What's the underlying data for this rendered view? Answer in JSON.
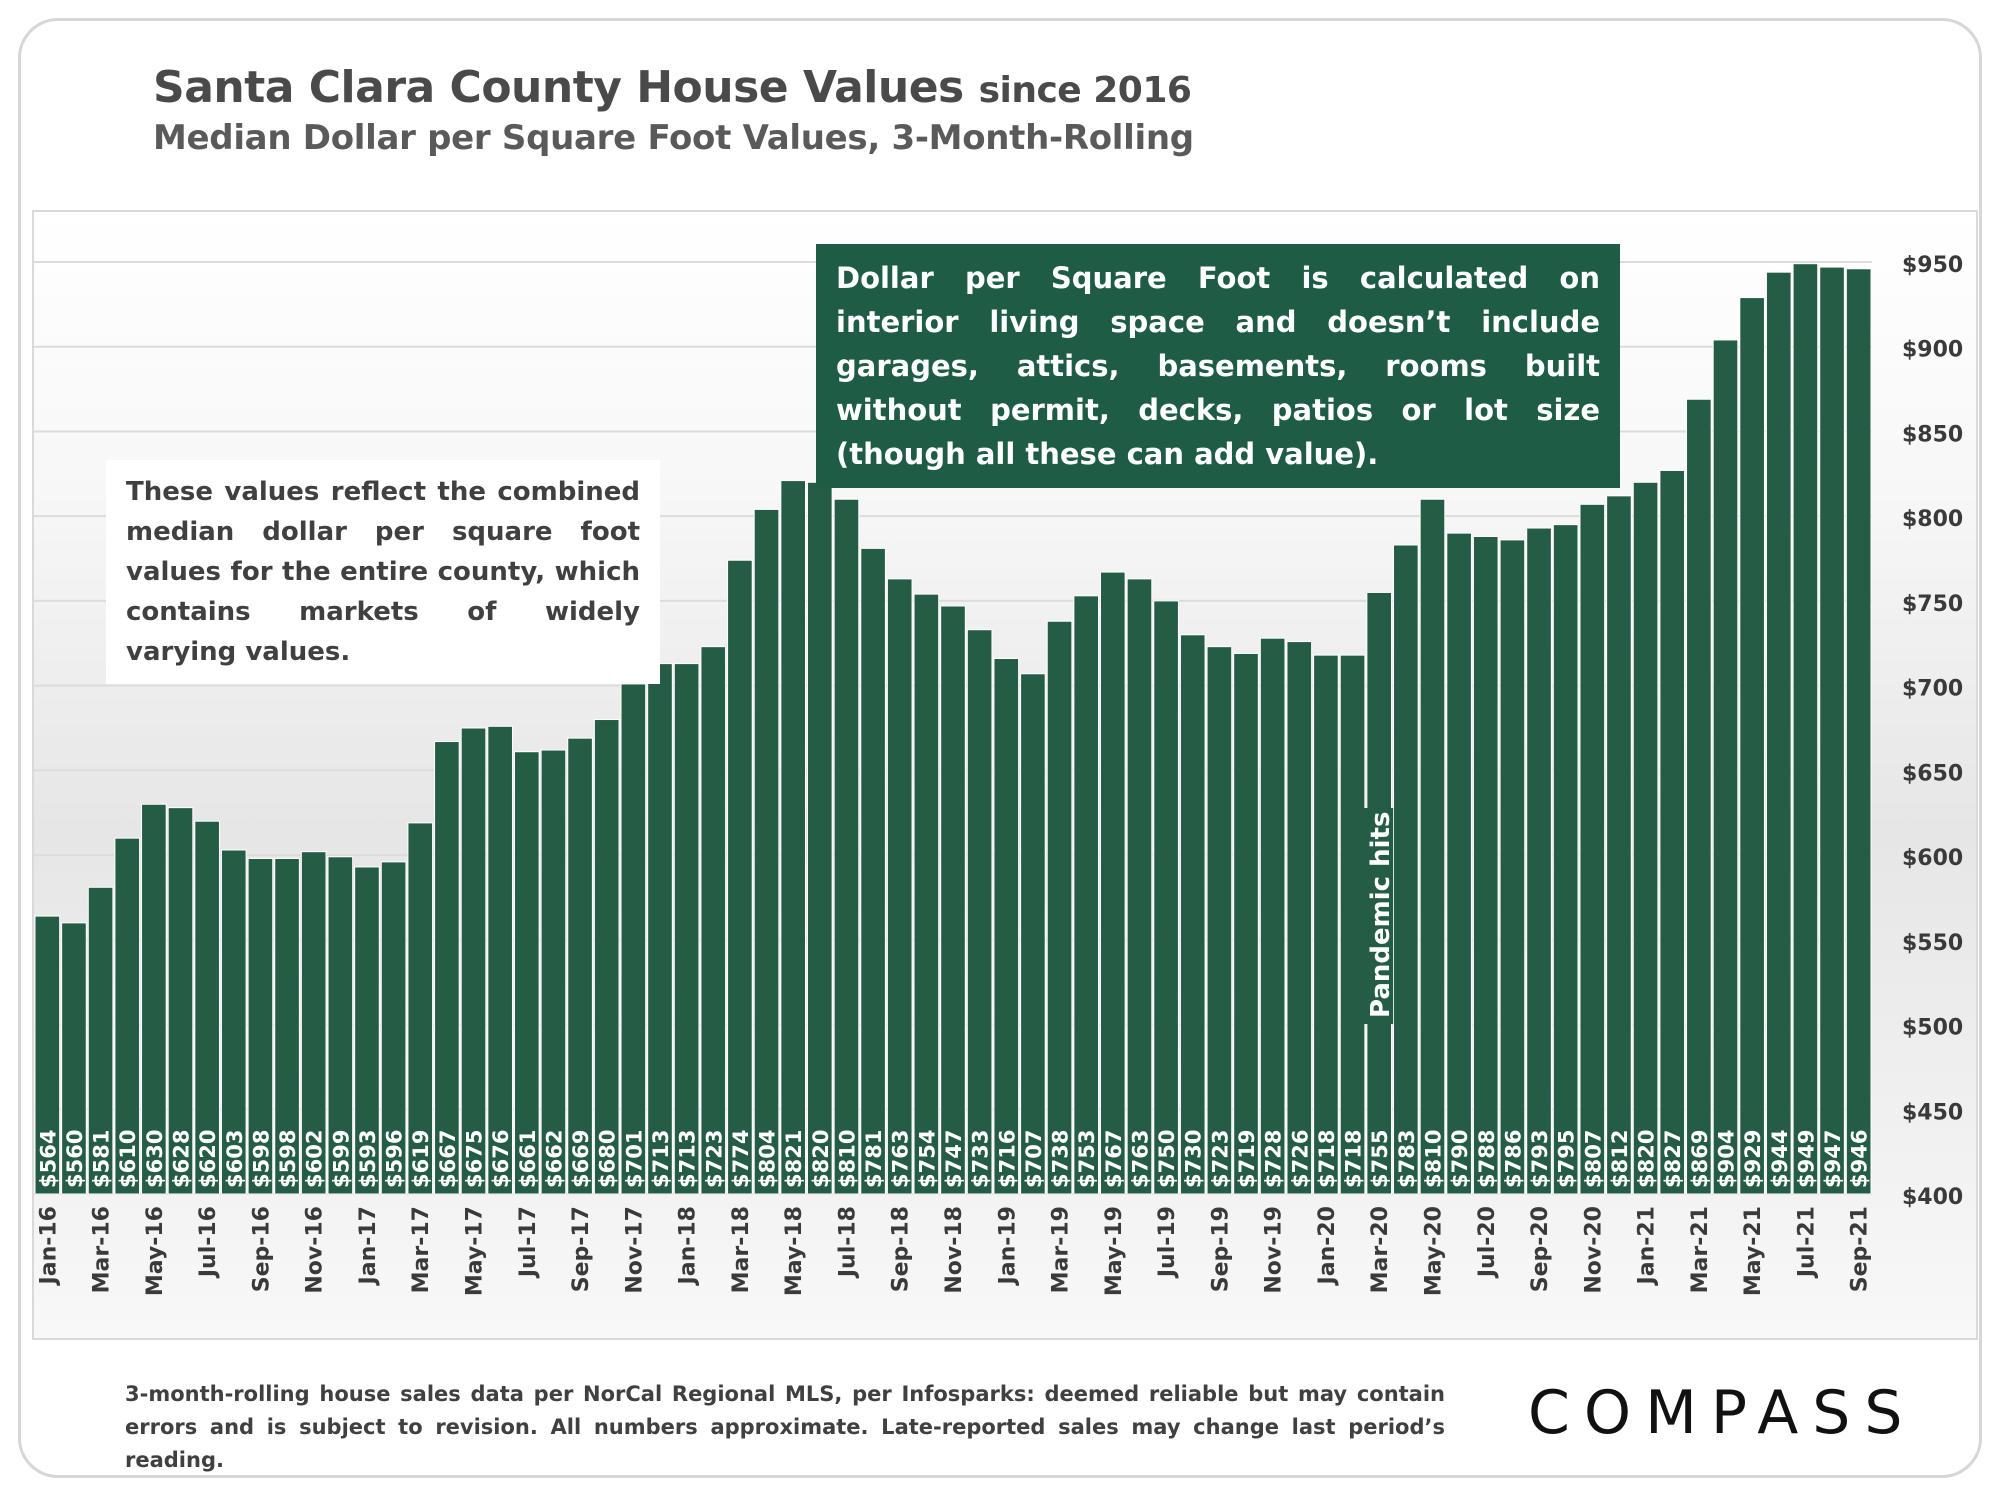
{
  "header": {
    "title_main": "Santa Clara County House Values",
    "title_small": "since 2016",
    "subtitle": "Median Dollar per Square Foot Values, 3-Month-Rolling"
  },
  "callout_text": "Dollar per Square Foot is calculated on interior living space and doesn’t include garages, attics, basements, rooms built without permit, decks, patios or lot size (though all these can add value).",
  "note_text": "These values reflect the combined median dollar per square foot values for the entire county, which contains markets of widely varying values.",
  "footer_text": "3-month-rolling house sales data per NorCal Regional MLS, per Infosparks: deemed reliable but may contain errors and is subject to revision. All numbers approximate. Late-reported sales may change last period’s reading.",
  "brand": "COMPASS",
  "colors": {
    "bar": "#245c46",
    "bar_edge": "#ffffff",
    "callout_bg": "#1e5c46",
    "label": "#ffffff",
    "axis_text": "#3a3a3a"
  },
  "chart_data": {
    "type": "bar",
    "y_axis_side": "right",
    "ylim": [
      400,
      950
    ],
    "yticks": [
      "$400",
      "$450",
      "$500",
      "$550",
      "$600",
      "$650",
      "$700",
      "$750",
      "$800",
      "$850",
      "$900",
      "$950"
    ],
    "ytick_values": [
      400,
      450,
      500,
      550,
      600,
      650,
      700,
      750,
      800,
      850,
      900,
      950
    ],
    "grid": true,
    "categories": [
      "Jan-16",
      "Feb-16",
      "Mar-16",
      "Apr-16",
      "May-16",
      "Jun-16",
      "Jul-16",
      "Aug-16",
      "Sep-16",
      "Oct-16",
      "Nov-16",
      "Dec-16",
      "Jan-17",
      "Feb-17",
      "Mar-17",
      "Apr-17",
      "May-17",
      "Jun-17",
      "Jul-17",
      "Aug-17",
      "Sep-17",
      "Oct-17",
      "Nov-17",
      "Dec-17",
      "Jan-18",
      "Feb-18",
      "Mar-18",
      "Apr-18",
      "May-18",
      "Jun-18",
      "Jul-18",
      "Aug-18",
      "Sep-18",
      "Oct-18",
      "Nov-18",
      "Dec-18",
      "Jan-19",
      "Feb-19",
      "Mar-19",
      "Apr-19",
      "May-19",
      "Jun-19",
      "Jul-19",
      "Aug-19",
      "Sep-19",
      "Oct-19",
      "Nov-19",
      "Dec-19",
      "Jan-20",
      "Feb-20",
      "Mar-20",
      "Apr-20",
      "May-20",
      "Jun-20",
      "Jul-20",
      "Aug-20",
      "Sep-20",
      "Oct-20",
      "Nov-20",
      "Dec-20",
      "Jan-21",
      "Feb-21",
      "Mar-21",
      "Apr-21",
      "May-21",
      "Jun-21",
      "Jul-21",
      "Aug-21",
      "Sep-21"
    ],
    "x_tick_labels": [
      "Jan-16",
      "",
      "Mar-16",
      "",
      "May-16",
      "",
      "Jul-16",
      "",
      "Sep-16",
      "",
      "Nov-16",
      "",
      "Jan-17",
      "",
      "Mar-17",
      "",
      "May-17",
      "",
      "Jul-17",
      "",
      "Sep-17",
      "",
      "Nov-17",
      "",
      "Jan-18",
      "",
      "Mar-18",
      "",
      "May-18",
      "",
      "Jul-18",
      "",
      "Sep-18",
      "",
      "Nov-18",
      "",
      "Jan-19",
      "",
      "Mar-19",
      "",
      "May-19",
      "",
      "Jul-19",
      "",
      "Sep-19",
      "",
      "Nov-19",
      "",
      "Jan-20",
      "",
      "Mar-20",
      "",
      "May-20",
      "",
      "Jul-20",
      "",
      "Sep-20",
      "",
      "Nov-20",
      "",
      "Jan-21",
      "",
      "Mar-21",
      "",
      "May-21",
      "",
      "Jul-21",
      "",
      "Sep-21"
    ],
    "values": [
      564,
      560,
      581,
      610,
      630,
      628,
      620,
      603,
      598,
      598,
      602,
      599,
      593,
      596,
      619,
      667,
      675,
      676,
      661,
      662,
      669,
      680,
      701,
      713,
      713,
      723,
      774,
      804,
      821,
      820,
      810,
      781,
      763,
      754,
      747,
      733,
      716,
      707,
      738,
      753,
      767,
      763,
      750,
      730,
      723,
      719,
      728,
      726,
      718,
      718,
      755,
      783,
      810,
      790,
      788,
      786,
      793,
      795,
      807,
      812,
      820,
      827,
      869,
      904,
      929,
      944,
      949,
      947,
      946
    ],
    "data_labels": [
      "$564",
      "$560",
      "$581",
      "$610",
      "$630",
      "$628",
      "$620",
      "$603",
      "$598",
      "$598",
      "$602",
      "$599",
      "$593",
      "$596",
      "$619",
      "$667",
      "$675",
      "$676",
      "$661",
      "$662",
      "$669",
      "$680",
      "$701",
      "$713",
      "$713",
      "$723",
      "$774",
      "$804",
      "$821",
      "$820",
      "$810",
      "$781",
      "$763",
      "$754",
      "$747",
      "$733",
      "$716",
      "$707",
      "$738",
      "$753",
      "$767",
      "$763",
      "$750",
      "$730",
      "$723",
      "$719",
      "$728",
      "$726",
      "$718",
      "$718",
      "$755",
      "$783",
      "$810",
      "$790",
      "$788",
      "$786",
      "$793",
      "$795",
      "$807",
      "$812",
      "$820",
      "$827",
      "$869",
      "$904",
      "$929",
      "$944",
      "$949",
      "$947",
      "$946"
    ],
    "annotations": [
      {
        "text": "Pandemic hits",
        "category": "Mar-20"
      }
    ]
  }
}
